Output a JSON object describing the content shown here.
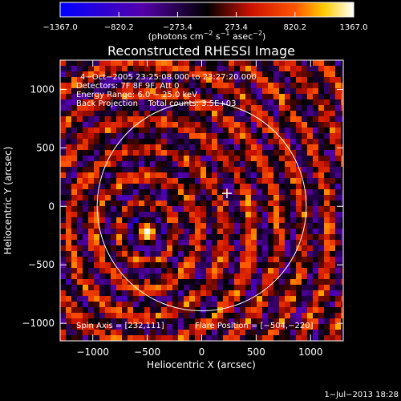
{
  "colorbar": {
    "tick_labels": [
      "−1367.0",
      "−820.2",
      "−273.4",
      "273.4",
      "820.2",
      "1367.0"
    ],
    "tick_values": [
      -1367.0,
      -820.2,
      -273.4,
      273.4,
      820.2,
      1367.0
    ],
    "range": [
      -1367.0,
      1367.0
    ],
    "units_prefix": "(photons cm",
    "units_exp1": "−2",
    "units_mid": " s",
    "units_exp2": "−1",
    "units_mid2": " asec",
    "units_exp3": "−2",
    "units_suffix": ")",
    "palette": [
      "#0000ff",
      "#000000",
      "#ff0000",
      "#ffff00",
      "#ffffff"
    ]
  },
  "chart_data": {
    "type": "heatmap",
    "title": "Reconstructed RHESSI Image",
    "xlabel": "Heliocentric X (arcsec)",
    "ylabel": "Heliocentric Y (arcsec)",
    "xlim": [
      -1300,
      1300
    ],
    "ylim": [
      -1150,
      1250
    ],
    "xticks": [
      -1000,
      -500,
      0,
      500,
      1000
    ],
    "xtick_labels": [
      "−1000",
      "−500",
      "0",
      "500",
      "1000"
    ],
    "yticks": [
      -1000,
      -500,
      0,
      500,
      1000
    ],
    "ytick_labels": [
      "−1000",
      "−500",
      "0",
      "500",
      "1000"
    ],
    "annotations": {
      "line1": "4−Oct−2005 23:25:08.000 to 23:27:20.000",
      "line2": "Detectors: 7F 8F 9F, Att 0",
      "line3": "Energy Range: 6.0 − 25.0 keV",
      "line4": "Back Projection    Total counts: 3.5E+03",
      "spin_axis": "Spin Axis = [232,111]",
      "flare_position": "Flare Position = [−504,−220]"
    },
    "solar_limb": {
      "center": [
        0,
        0
      ],
      "radius_arcsec": 960
    },
    "spin_axis_marker": [
      232,
      111
    ],
    "flare_peak": {
      "x": -504,
      "y": -220
    },
    "grid": false
  },
  "footer": {
    "timestamp": "1−Jul−2013 18:28"
  }
}
